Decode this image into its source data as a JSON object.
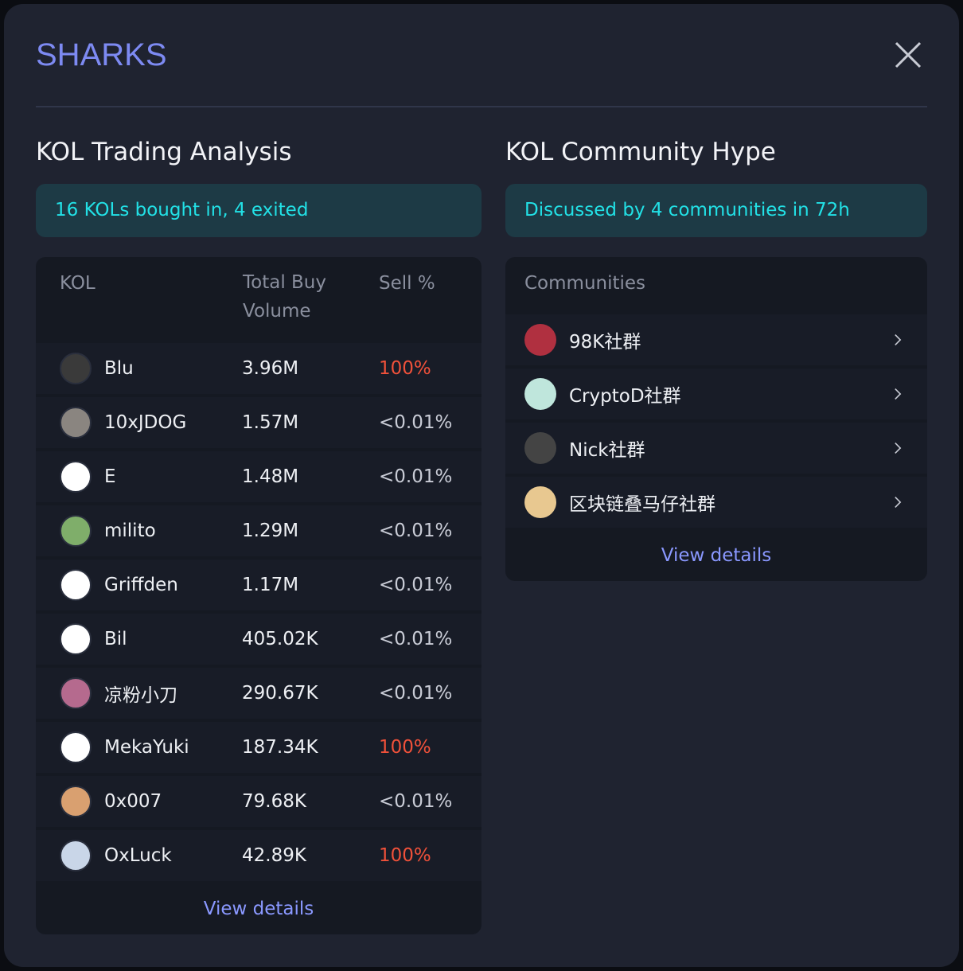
{
  "title": "SHARKS",
  "left": {
    "heading": "KOL Trading Analysis",
    "summary": "16 KOLs bought in, 4 exited",
    "columns": [
      "KOL",
      "Total Buy Volume",
      "Sell %"
    ],
    "rows": [
      {
        "name": "Blu",
        "volume": "3.96M",
        "sell": "100%",
        "sell_color": "#f0513a"
      },
      {
        "name": "10xJDOG",
        "volume": "1.57M",
        "sell": "<0.01%",
        "sell_color": "#c9ccd6"
      },
      {
        "name": "E",
        "volume": "1.48M",
        "sell": "<0.01%",
        "sell_color": "#c9ccd6"
      },
      {
        "name": "milito",
        "volume": "1.29M",
        "sell": "<0.01%",
        "sell_color": "#c9ccd6"
      },
      {
        "name": "Griffden",
        "volume": "1.17M",
        "sell": "<0.01%",
        "sell_color": "#c9ccd6"
      },
      {
        "name": "Bil",
        "volume": "405.02K",
        "sell": "<0.01%",
        "sell_color": "#c9ccd6"
      },
      {
        "name": "凉粉小刀",
        "volume": "290.67K",
        "sell": "<0.01%",
        "sell_color": "#c9ccd6"
      },
      {
        "name": "MekaYuki",
        "volume": "187.34K",
        "sell": "100%",
        "sell_color": "#f0513a"
      },
      {
        "name": "0x007",
        "volume": "79.68K",
        "sell": "<0.01%",
        "sell_color": "#c9ccd6"
      },
      {
        "name": "OxLuck",
        "volume": "42.89K",
        "sell": "100%",
        "sell_color": "#f0513a"
      }
    ],
    "link": "View details"
  },
  "right": {
    "heading": "KOL Community Hype",
    "summary": "Discussed by 4 communities in 72h",
    "column": "Communities",
    "rows": [
      "98K社群",
      "CryptoD社群",
      "Nick社群",
      "区块链叠马仔社群"
    ],
    "link": "View details"
  }
}
